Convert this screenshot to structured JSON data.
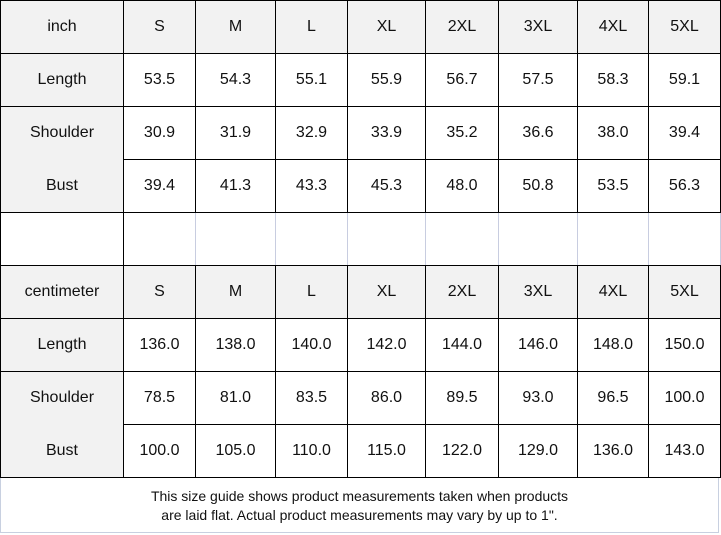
{
  "inch_table": {
    "unit_label": "inch",
    "sizes": [
      "S",
      "M",
      "L",
      "XL",
      "2XL",
      "3XL",
      "4XL",
      "5XL"
    ],
    "rows": [
      {
        "label": "Length",
        "values": [
          "53.5",
          "54.3",
          "55.1",
          "55.9",
          "56.7",
          "57.5",
          "58.3",
          "59.1"
        ]
      },
      {
        "label": "Shoulder",
        "values": [
          "30.9",
          "31.9",
          "32.9",
          "33.9",
          "35.2",
          "36.6",
          "38.0",
          "39.4"
        ]
      },
      {
        "label": "Bust",
        "values": [
          "39.4",
          "41.3",
          "43.3",
          "45.3",
          "48.0",
          "50.8",
          "53.5",
          "56.3"
        ]
      }
    ]
  },
  "cm_table": {
    "unit_label": "centimeter",
    "sizes": [
      "S",
      "M",
      "L",
      "XL",
      "2XL",
      "3XL",
      "4XL",
      "5XL"
    ],
    "rows": [
      {
        "label": "Length",
        "values": [
          "136.0",
          "138.0",
          "140.0",
          "142.0",
          "144.0",
          "146.0",
          "148.0",
          "150.0"
        ]
      },
      {
        "label": "Shoulder",
        "values": [
          "78.5",
          "81.0",
          "83.5",
          "86.0",
          "89.5",
          "93.0",
          "96.5",
          "100.0"
        ]
      },
      {
        "label": "Bust",
        "values": [
          "100.0",
          "105.0",
          "110.0",
          "115.0",
          "122.0",
          "129.0",
          "136.0",
          "143.0"
        ]
      }
    ]
  },
  "footer": {
    "line1": "This size guide shows product measurements taken when products",
    "line2": "are laid flat. Actual product measurements may vary by up to 1\"."
  }
}
